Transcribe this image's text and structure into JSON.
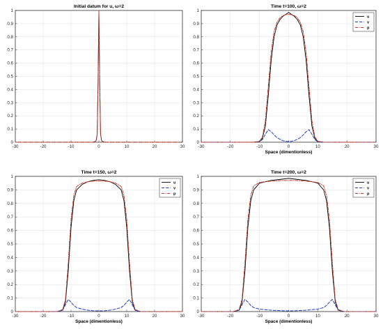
{
  "colors": {
    "u": "#000000",
    "v": "#1f3fbf",
    "p": "#c0392b",
    "axis": "#262626"
  },
  "chart_data": [
    {
      "type": "line",
      "title": "Initial datum for u, ω=2",
      "xlabel": "",
      "ylabel": "",
      "xlim": [
        -30,
        30
      ],
      "ylim": [
        0,
        1
      ],
      "xticks": [
        "-30",
        "-20",
        "-10",
        "0",
        "10",
        "20",
        "30"
      ],
      "yticks": [
        "0",
        "0.1",
        "0.2",
        "0.3",
        "0.4",
        "0.5",
        "0.6",
        "0.7",
        "0.8",
        "0.9",
        "1"
      ],
      "grid": true,
      "legend": "",
      "series": [
        {
          "key": "u",
          "style": "solid",
          "x": [
            -30,
            -2,
            -1,
            -0.6,
            -0.3,
            0,
            0.3,
            0.6,
            1,
            2,
            30
          ],
          "y": [
            0,
            0,
            0.01,
            0.06,
            0.45,
            1.0,
            0.45,
            0.06,
            0.01,
            0,
            0
          ]
        },
        {
          "key": "p",
          "style": "dashdot",
          "x": [
            -30,
            -2,
            -1,
            -0.6,
            -0.3,
            0,
            0.3,
            0.6,
            1,
            2,
            30
          ],
          "y": [
            0,
            0,
            0.01,
            0.06,
            0.45,
            1.0,
            0.45,
            0.06,
            0.01,
            0,
            0
          ]
        }
      ]
    },
    {
      "type": "line",
      "title": "Time t=100, ω=2",
      "xlabel": "Space (dimentionless)",
      "ylabel": "",
      "xlim": [
        -30,
        30
      ],
      "ylim": [
        0,
        1
      ],
      "xticks": [
        "-30",
        "-20",
        "-10",
        "0",
        "10",
        "20",
        "30"
      ],
      "yticks": [
        "0",
        "0.1",
        "0.2",
        "0.3",
        "0.4",
        "0.5",
        "0.6",
        "0.7",
        "0.8",
        "0.9",
        "1"
      ],
      "grid": true,
      "legend": "top-right",
      "series": [
        {
          "name": "u",
          "style": "solid",
          "x": [
            -30,
            -12,
            -10,
            -9,
            -8,
            -7,
            -6,
            -5,
            -4,
            -3,
            -2,
            -1,
            0,
            1,
            2,
            3,
            4,
            5,
            6,
            7,
            8,
            9,
            10,
            12,
            30
          ],
          "y": [
            0,
            0,
            0.005,
            0.03,
            0.12,
            0.35,
            0.62,
            0.8,
            0.89,
            0.93,
            0.955,
            0.97,
            0.985,
            0.97,
            0.955,
            0.93,
            0.89,
            0.8,
            0.62,
            0.35,
            0.12,
            0.03,
            0.005,
            0,
            0
          ]
        },
        {
          "name": "v",
          "style": "dashed",
          "x": [
            -30,
            -12,
            -10,
            -9,
            -8,
            -7,
            -6,
            -5,
            -4,
            -3,
            -2,
            -1,
            0,
            1,
            2,
            3,
            4,
            5,
            6,
            7,
            8,
            9,
            10,
            12,
            30
          ],
          "y": [
            0,
            0,
            0.003,
            0.02,
            0.06,
            0.095,
            0.08,
            0.055,
            0.035,
            0.022,
            0.012,
            0.007,
            0.005,
            0.007,
            0.012,
            0.022,
            0.035,
            0.055,
            0.08,
            0.095,
            0.06,
            0.02,
            0.003,
            0,
            0
          ]
        },
        {
          "name": "p",
          "style": "dashdot",
          "x": [
            -30,
            -12,
            -10,
            -9,
            -8,
            -7,
            -6,
            -5,
            -4,
            -3,
            -2,
            -1,
            0,
            1,
            2,
            3,
            4,
            5,
            6,
            7,
            8,
            9,
            10,
            12,
            30
          ],
          "y": [
            0,
            0,
            0.007,
            0.04,
            0.16,
            0.42,
            0.68,
            0.84,
            0.91,
            0.945,
            0.96,
            0.968,
            0.97,
            0.968,
            0.96,
            0.945,
            0.91,
            0.84,
            0.68,
            0.42,
            0.16,
            0.04,
            0.007,
            0,
            0
          ]
        }
      ]
    },
    {
      "type": "line",
      "title": "Time t=150, ω=2",
      "xlabel": "Space (dimentionless)",
      "ylabel": "",
      "xlim": [
        -30,
        30
      ],
      "ylim": [
        0,
        1
      ],
      "xticks": [
        "-30",
        "-20",
        "-10",
        "0",
        "10",
        "20",
        "30"
      ],
      "yticks": [
        "0",
        "0.1",
        "0.2",
        "0.3",
        "0.4",
        "0.5",
        "0.6",
        "0.7",
        "0.8",
        "0.9",
        "1"
      ],
      "grid": true,
      "legend": "top-right",
      "series": [
        {
          "name": "u",
          "style": "solid",
          "x": [
            -30,
            -15,
            -13,
            -12,
            -11,
            -10,
            -9,
            -8,
            -6,
            -4,
            -2,
            0,
            2,
            4,
            6,
            8,
            9,
            10,
            11,
            12,
            13,
            15,
            30
          ],
          "y": [
            0,
            0,
            0.01,
            0.07,
            0.3,
            0.62,
            0.82,
            0.9,
            0.94,
            0.96,
            0.97,
            0.975,
            0.97,
            0.96,
            0.94,
            0.9,
            0.82,
            0.62,
            0.3,
            0.07,
            0.01,
            0,
            0
          ]
        },
        {
          "name": "v",
          "style": "dashed",
          "x": [
            -30,
            -15,
            -13,
            -12,
            -11,
            -10,
            -9,
            -8,
            -6,
            -4,
            -2,
            0,
            2,
            4,
            6,
            8,
            9,
            10,
            11,
            12,
            13,
            15,
            30
          ],
          "y": [
            0,
            0,
            0.01,
            0.05,
            0.09,
            0.07,
            0.045,
            0.03,
            0.018,
            0.01,
            0.006,
            0.005,
            0.006,
            0.01,
            0.018,
            0.03,
            0.045,
            0.07,
            0.09,
            0.05,
            0.01,
            0,
            0
          ]
        },
        {
          "name": "p",
          "style": "dashdot",
          "x": [
            -30,
            -15,
            -13,
            -12,
            -11,
            -10,
            -9,
            -8,
            -6,
            -4,
            -2,
            0,
            2,
            4,
            6,
            8,
            9,
            10,
            11,
            12,
            13,
            15,
            30
          ],
          "y": [
            0,
            0,
            0.015,
            0.09,
            0.36,
            0.68,
            0.86,
            0.925,
            0.95,
            0.96,
            0.965,
            0.965,
            0.965,
            0.96,
            0.95,
            0.925,
            0.86,
            0.68,
            0.36,
            0.09,
            0.015,
            0,
            0
          ]
        }
      ]
    },
    {
      "type": "line",
      "title": "Time t=200, ω=2",
      "xlabel": "Space (dimentionless)",
      "ylabel": "",
      "xlim": [
        -30,
        30
      ],
      "ylim": [
        0,
        1
      ],
      "xticks": [
        "-30",
        "-20",
        "-10",
        "0",
        "10",
        "20",
        "30"
      ],
      "yticks": [
        "0",
        "0.1",
        "0.2",
        "0.3",
        "0.4",
        "0.5",
        "0.6",
        "0.7",
        "0.8",
        "0.9",
        "1"
      ],
      "grid": true,
      "legend": "top-right",
      "series": [
        {
          "name": "u",
          "style": "solid",
          "x": [
            -30,
            -19,
            -17,
            -16,
            -15,
            -14,
            -13,
            -12,
            -10,
            -6,
            -2,
            0,
            2,
            6,
            10,
            12,
            13,
            14,
            15,
            16,
            17,
            19,
            30
          ],
          "y": [
            0,
            0,
            0.01,
            0.07,
            0.3,
            0.62,
            0.82,
            0.9,
            0.95,
            0.97,
            0.98,
            0.985,
            0.98,
            0.97,
            0.95,
            0.9,
            0.82,
            0.62,
            0.3,
            0.07,
            0.01,
            0,
            0
          ]
        },
        {
          "name": "v",
          "style": "dashed",
          "x": [
            -30,
            -19,
            -17,
            -16,
            -15,
            -14,
            -13,
            -12,
            -10,
            -6,
            -2,
            0,
            2,
            6,
            10,
            12,
            13,
            14,
            15,
            16,
            17,
            19,
            30
          ],
          "y": [
            0,
            0,
            0.01,
            0.05,
            0.09,
            0.07,
            0.045,
            0.03,
            0.018,
            0.01,
            0.006,
            0.005,
            0.006,
            0.01,
            0.018,
            0.03,
            0.045,
            0.07,
            0.09,
            0.05,
            0.01,
            0,
            0
          ]
        },
        {
          "name": "p",
          "style": "dashdot",
          "x": [
            -30,
            -19,
            -17,
            -16,
            -15,
            -14,
            -13,
            -12,
            -10,
            -6,
            -2,
            0,
            2,
            6,
            10,
            12,
            13,
            14,
            15,
            16,
            17,
            19,
            30
          ],
          "y": [
            0,
            0,
            0.015,
            0.09,
            0.36,
            0.68,
            0.86,
            0.93,
            0.955,
            0.965,
            0.97,
            0.97,
            0.97,
            0.965,
            0.955,
            0.93,
            0.86,
            0.68,
            0.36,
            0.09,
            0.015,
            0,
            0
          ]
        }
      ]
    }
  ]
}
